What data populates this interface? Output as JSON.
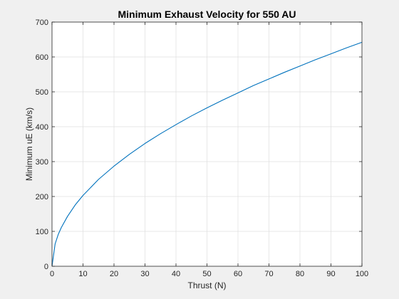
{
  "chart_data": {
    "type": "line",
    "title": "Minimum Exhaust Velocity for 550 AU",
    "xlabel": "Thrust (N)",
    "ylabel": "Minimum uE (km/s)",
    "xlim": [
      0,
      100
    ],
    "ylim": [
      0,
      700
    ],
    "xticks": [
      0,
      10,
      20,
      30,
      40,
      50,
      60,
      70,
      80,
      90,
      100
    ],
    "yticks": [
      0,
      100,
      200,
      300,
      400,
      500,
      600,
      700
    ],
    "grid": true,
    "legend": "none",
    "series": [
      {
        "color": "#0072bd",
        "x": [
          0,
          1,
          2,
          3,
          5,
          7.5,
          10,
          15,
          20,
          25,
          30,
          35,
          40,
          45,
          50,
          55,
          60,
          65,
          70,
          75,
          80,
          85,
          90,
          95,
          100
        ],
        "y": [
          0,
          64,
          91,
          111,
          143,
          176,
          203,
          249,
          287,
          321,
          352,
          380,
          406,
          431,
          454,
          476,
          497,
          518,
          537,
          556,
          574,
          592,
          609,
          626,
          642
        ]
      }
    ]
  },
  "colors": {
    "figure_background": "#f0f0f0",
    "axes_background": "#ffffff",
    "axis_line": "#262626",
    "grid": "#dfdfdf",
    "series_line": "#0072bd"
  }
}
